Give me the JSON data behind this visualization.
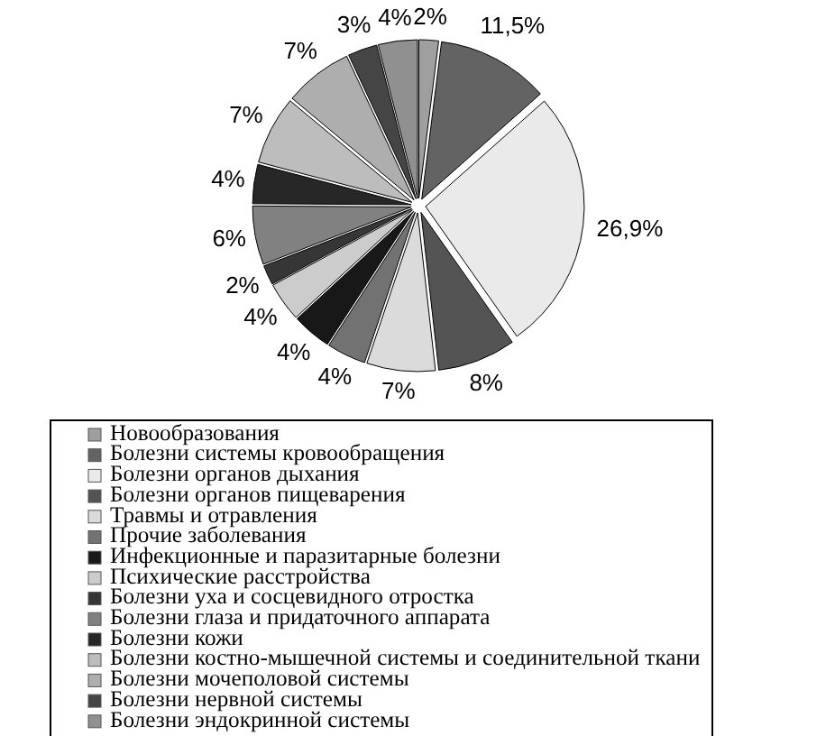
{
  "chart_data": {
    "type": "pie",
    "categories": [
      "Новообразования",
      "Болезни системы кровообращения",
      "Болезни органов дыхания",
      "Болезни органов пищеварения",
      "Травмы и отравления",
      "Прочие заболевания",
      "Инфекционные и паразитарные болезни",
      "Психические расстройства",
      "Болезни уха и сосцевидного отростка",
      "Болезни глаза и придаточного аппарата",
      "Болезни кожи",
      "Болезни костно-мышечной системы и соединительной ткани",
      "Болезни мочеполовой системы",
      "Болезни нервной системы",
      "Болезни эндокринной системы"
    ],
    "values": [
      2,
      11.5,
      26.9,
      8,
      7,
      4,
      4,
      4,
      2,
      6,
      4,
      7,
      7,
      3,
      4
    ],
    "value_labels": [
      "2%",
      "11,5%",
      "26,9%",
      "8%",
      "7%",
      "4%",
      "4%",
      "4%",
      "2%",
      "6%",
      "4%",
      "7%",
      "7%",
      "3%",
      "4%"
    ],
    "colors": [
      "#9f9f9f",
      "#636363",
      "#eaeaea",
      "#545454",
      "#dbdbdb",
      "#727272",
      "#181818",
      "#cccccc",
      "#363636",
      "#818181",
      "#272727",
      "#bdbdbd",
      "#aeaeae",
      "#454545",
      "#909090"
    ],
    "legend": "bottom"
  }
}
